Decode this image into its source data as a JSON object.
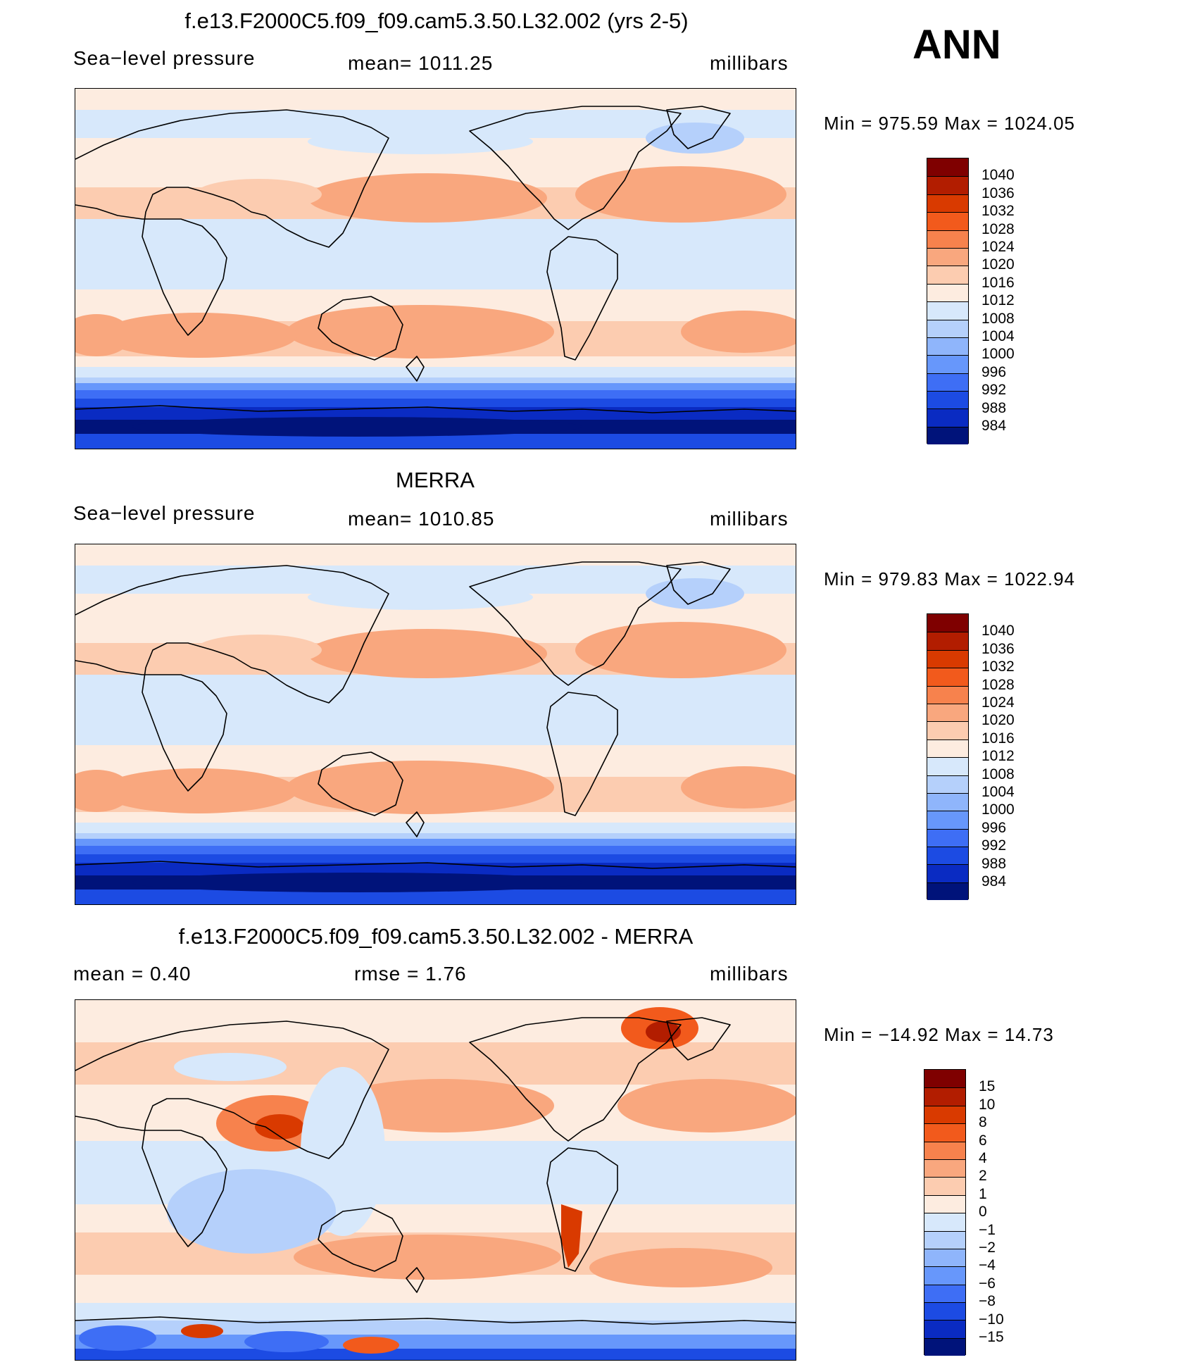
{
  "season": "ANN",
  "panels": [
    {
      "title": "f.e13.F2000C5.f09_f09.cam5.3.50.L32.002 (yrs 2-5)",
      "left_label": "Sea−level pressure",
      "center_label": "mean=  1011.25",
      "right_label": "millibars",
      "min_max": "Min  =  975.59  Max  =  1024.05",
      "kind": "abs"
    },
    {
      "title": "MERRA",
      "left_label": "Sea−level pressure",
      "center_label": "mean=  1010.85",
      "right_label": "millibars",
      "min_max": "Min  =  979.83  Max  =  1022.94",
      "kind": "abs"
    },
    {
      "title": "f.e13.F2000C5.f09_f09.cam5.3.50.L32.002 - MERRA",
      "left_label": "mean  =     0.40",
      "center_label": "rmse  =     1.76",
      "right_label": "millibars",
      "min_max": "Min  =  −14.92  Max  =    14.73",
      "kind": "diff"
    }
  ],
  "colorbars": {
    "abs": {
      "labels": [
        "1040",
        "1036",
        "1032",
        "1028",
        "1024",
        "1020",
        "1016",
        "1012",
        "1008",
        "1004",
        "1000",
        "996",
        "992",
        "988",
        "984"
      ],
      "colors": [
        "#7f0000",
        "#b21d00",
        "#d93a00",
        "#f25a1c",
        "#f7824d",
        "#f9a77e",
        "#fcccb0",
        "#fdece0",
        "#d7e8fb",
        "#b5d0fb",
        "#8fb5fb",
        "#6797fb",
        "#3e6ef5",
        "#1c4be3",
        "#0a2bc2",
        "#00137a"
      ]
    },
    "diff": {
      "labels": [
        "15",
        "10",
        "8",
        "6",
        "4",
        "2",
        "1",
        "0",
        "−1",
        "−2",
        "−4",
        "−6",
        "−8",
        "−10",
        "−15"
      ],
      "colors": [
        "#7f0000",
        "#b21d00",
        "#d93a00",
        "#f25a1c",
        "#f7824d",
        "#f9a77e",
        "#fcccb0",
        "#fdece0",
        "#d7e8fb",
        "#b5d0fb",
        "#8fb5fb",
        "#6797fb",
        "#3e6ef5",
        "#1c4be3",
        "#0a2bc2",
        "#00137a"
      ]
    }
  }
}
